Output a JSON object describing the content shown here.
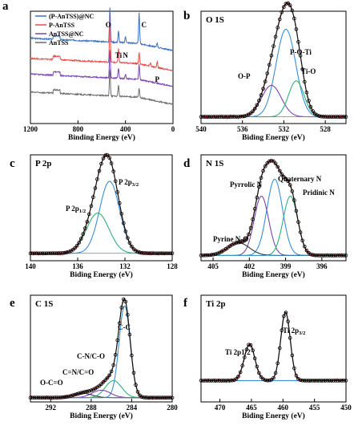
{
  "chart_data": [
    {
      "id": "a",
      "type": "line",
      "letter": "a",
      "title": "",
      "xlabel": "Binding Energy (eV)",
      "xlim": [
        1200,
        0
      ],
      "xticks": [
        1200,
        800,
        400,
        0
      ],
      "legend": [
        {
          "name": "(P-AnTSS)@NC",
          "color": "#3a6fc4"
        },
        {
          "name": "P-AnTSS",
          "color": "#e84c4c"
        },
        {
          "name": "AnTSS@NC",
          "color": "#7a45b0"
        },
        {
          "name": "AnTSS",
          "color": "#6b6b6b"
        }
      ],
      "peak_labels": [
        {
          "text": "O",
          "x": 531
        },
        {
          "text": "Ti",
          "x": 459
        },
        {
          "text": "N",
          "x": 400
        },
        {
          "text": "C",
          "x": 285
        },
        {
          "text": "P",
          "x": 133
        }
      ],
      "series": [
        {
          "name": "(P-AnTSS)@NC",
          "color": "#3a6fc4",
          "baseline": 0.7,
          "peaks": [
            {
              "x": 531,
              "h": 0.3
            },
            {
              "x": 459,
              "h": 0.1
            },
            {
              "x": 400,
              "h": 0.06
            },
            {
              "x": 285,
              "h": 0.28
            },
            {
              "x": 133,
              "h": 0.04
            }
          ]
        },
        {
          "name": "P-AnTSS",
          "color": "#e84c4c",
          "baseline": 0.52,
          "peaks": [
            {
              "x": 531,
              "h": 0.4
            },
            {
              "x": 459,
              "h": 0.12
            },
            {
              "x": 285,
              "h": 0.1
            },
            {
              "x": 190,
              "h": 0.03
            },
            {
              "x": 133,
              "h": 0.05
            }
          ]
        },
        {
          "name": "AnTSS@NC",
          "color": "#7a45b0",
          "baseline": 0.38,
          "peaks": [
            {
              "x": 531,
              "h": 0.25
            },
            {
              "x": 459,
              "h": 0.09
            },
            {
              "x": 400,
              "h": 0.04
            },
            {
              "x": 285,
              "h": 0.14
            }
          ]
        },
        {
          "name": "AnTSS",
          "color": "#6b6b6b",
          "baseline": 0.22,
          "peaks": [
            {
              "x": 531,
              "h": 0.24
            },
            {
              "x": 459,
              "h": 0.1
            },
            {
              "x": 285,
              "h": 0.08
            }
          ]
        }
      ]
    },
    {
      "id": "b",
      "type": "line",
      "letter": "b",
      "title": "O 1S",
      "xlabel": "Biding Energy (eV)",
      "xlim": [
        540,
        526
      ],
      "xticks": [
        540,
        536,
        532,
        528
      ],
      "background": 0.06,
      "components": [
        {
          "name": "P-O-Ti",
          "center": 531.8,
          "sigma": 0.95,
          "amp": 0.78,
          "color": "#3a8fd6"
        },
        {
          "name": "O-P",
          "center": 533.2,
          "sigma": 0.95,
          "amp": 0.28,
          "color": "#7a45b0"
        },
        {
          "name": "Ti-O",
          "center": 530.8,
          "sigma": 0.75,
          "amp": 0.32,
          "color": "#2fb07a"
        }
      ],
      "annotations": [
        {
          "text": "P-O-Ti"
        },
        {
          "text": "O-P"
        },
        {
          "text": "Ti-O"
        }
      ]
    },
    {
      "id": "c",
      "type": "line",
      "letter": "c",
      "title": "P 2p",
      "xlabel": "Biding Energy (eV)",
      "xlim": [
        140,
        128
      ],
      "xticks": [
        140,
        136,
        132,
        128
      ],
      "background": 0.07,
      "components": [
        {
          "name": "P 2p3/2",
          "center": 133.3,
          "sigma": 0.85,
          "amp": 0.68,
          "color": "#3a8fd6"
        },
        {
          "name": "P 2p1/2",
          "center": 134.3,
          "sigma": 0.95,
          "amp": 0.38,
          "color": "#2fb07a"
        }
      ],
      "annotations": [
        {
          "text": "P 2p",
          "sub": "3/2"
        },
        {
          "text": "P 2p",
          "sub": "1/2"
        }
      ]
    },
    {
      "id": "d",
      "type": "line",
      "letter": "d",
      "title": "N 1S",
      "xlabel": "Biding Energy (eV)",
      "xlim": [
        406,
        394
      ],
      "xticks": [
        405,
        402,
        399,
        396
      ],
      "background": 0.05,
      "components": [
        {
          "name": "Pyrrolic N",
          "center": 399.9,
          "sigma": 0.65,
          "amp": 0.72,
          "color": "#3a8fd6"
        },
        {
          "name": "Quaternary N",
          "center": 401.0,
          "sigma": 0.6,
          "amp": 0.56,
          "color": "#7a45b0"
        },
        {
          "name": "Pridinic N",
          "center": 398.6,
          "sigma": 0.6,
          "amp": 0.56,
          "color": "#2fb07a"
        },
        {
          "name": "Pyrine N-O",
          "center": 402.9,
          "sigma": 0.9,
          "amp": 0.12,
          "color": "#333333"
        }
      ],
      "annotations": [
        {
          "text": "Quaternary N"
        },
        {
          "text": "Pyrrolic N"
        },
        {
          "text": "Pridinic N"
        },
        {
          "text": "Pyrine N-O"
        }
      ]
    },
    {
      "id": "e",
      "type": "line",
      "letter": "e",
      "title": "C 1S",
      "xlabel": "Biding Energy (eV)",
      "xlim": [
        294,
        280
      ],
      "xticks": [
        292,
        288,
        284,
        280
      ],
      "background": 0.04,
      "components": [
        {
          "name": "C-C",
          "center": 284.7,
          "sigma": 0.55,
          "amp": 0.86,
          "color": "#3a8fd6"
        },
        {
          "name": "C-N/C-O",
          "center": 285.8,
          "sigma": 0.8,
          "amp": 0.16,
          "color": "#2fb07a"
        },
        {
          "name": "C=N/C=O",
          "center": 287.0,
          "sigma": 0.9,
          "amp": 0.07,
          "color": "#7a45b0"
        },
        {
          "name": "O-C=O",
          "center": 288.8,
          "sigma": 0.9,
          "amp": 0.04,
          "color": "#333333"
        }
      ],
      "annotations": [
        {
          "text": "C-C"
        },
        {
          "text": "C-N/C-O"
        },
        {
          "text": "C=N/C=O"
        },
        {
          "text": "O-C=O"
        }
      ]
    },
    {
      "id": "f",
      "type": "line",
      "letter": "f",
      "title": "Ti 2p",
      "xlabel": "Biding Energy (eV)",
      "xlim": [
        473,
        450
      ],
      "xticks": [
        470,
        465,
        460,
        455,
        450
      ],
      "background": 0.2,
      "components": [
        {
          "name": "Ti 2p3/2",
          "center": 459.6,
          "sigma": 0.75,
          "amp": 0.64,
          "color": "#3a8fd6"
        },
        {
          "name": "Ti 2p1/2",
          "center": 465.3,
          "sigma": 0.85,
          "amp": 0.34,
          "color": "#3a8fd6"
        }
      ],
      "annotations": [
        {
          "text": "Ti 2p",
          "sub": "3/2"
        },
        {
          "text": "Ti 2p1/2"
        }
      ]
    }
  ]
}
